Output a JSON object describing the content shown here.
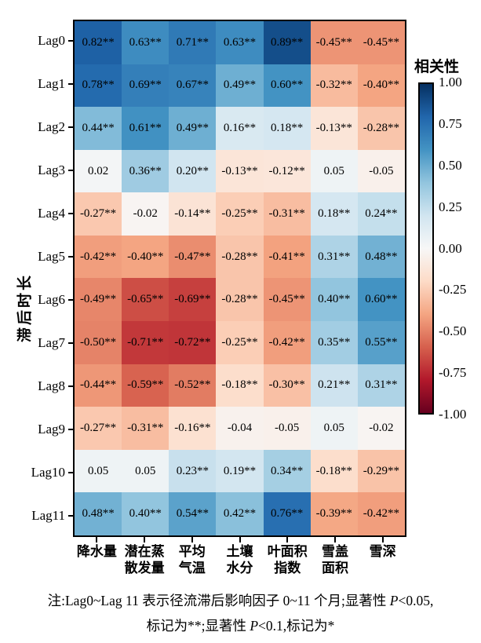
{
  "chart_data": {
    "type": "heatmap",
    "title": "",
    "ylabel": "滞后时长",
    "xlabel": "",
    "rows": [
      "Lag0",
      "Lag1",
      "Lag2",
      "Lag3",
      "Lag4",
      "Lag5",
      "Lag6",
      "Lag7",
      "Lag8",
      "Lag9",
      "Lag10",
      "Lag11"
    ],
    "columns": [
      [
        "降水量"
      ],
      [
        "潜在蒸",
        "散发量"
      ],
      [
        "平均",
        "气温"
      ],
      [
        "土壤",
        "水分"
      ],
      [
        "叶面积",
        "指数"
      ],
      [
        "雪盖",
        "面积"
      ],
      [
        "雪深"
      ]
    ],
    "values": [
      [
        0.82,
        0.63,
        0.71,
        0.63,
        0.89,
        -0.45,
        -0.45
      ],
      [
        0.78,
        0.69,
        0.67,
        0.49,
        0.6,
        -0.32,
        -0.4
      ],
      [
        0.44,
        0.61,
        0.49,
        0.16,
        0.18,
        -0.13,
        -0.28
      ],
      [
        0.02,
        0.36,
        0.2,
        -0.13,
        -0.12,
        0.05,
        -0.05
      ],
      [
        -0.27,
        -0.02,
        -0.14,
        -0.25,
        -0.31,
        0.18,
        0.24
      ],
      [
        -0.42,
        -0.4,
        -0.47,
        -0.28,
        -0.41,
        0.31,
        0.48
      ],
      [
        -0.49,
        -0.65,
        -0.69,
        -0.28,
        -0.45,
        0.4,
        0.6
      ],
      [
        -0.5,
        -0.71,
        -0.72,
        -0.25,
        -0.42,
        0.35,
        0.55
      ],
      [
        -0.44,
        -0.59,
        -0.52,
        -0.18,
        -0.3,
        0.21,
        0.31
      ],
      [
        -0.27,
        -0.31,
        -0.16,
        -0.04,
        -0.05,
        0.05,
        -0.02
      ],
      [
        0.05,
        0.05,
        0.23,
        0.19,
        0.34,
        -0.18,
        -0.29
      ],
      [
        0.48,
        0.4,
        0.54,
        0.42,
        0.76,
        -0.39,
        -0.42
      ]
    ],
    "labels": [
      [
        "0.82**",
        "0.63**",
        "0.71**",
        "0.63**",
        "0.89**",
        "-0.45**",
        "-0.45**"
      ],
      [
        "0.78**",
        "0.69**",
        "0.67**",
        "0.49**",
        "0.60**",
        "-0.32**",
        "-0.40**"
      ],
      [
        "0.44**",
        "0.61**",
        "0.49**",
        "0.16**",
        "0.18**",
        "-0.13**",
        "-0.28**"
      ],
      [
        "0.02",
        "0.36**",
        "0.20**",
        "-0.13**",
        "-0.12**",
        "0.05",
        "-0.05"
      ],
      [
        "-0.27**",
        "-0.02",
        "-0.14**",
        "-0.25**",
        "-0.31**",
        "0.18**",
        "0.24**"
      ],
      [
        "-0.42**",
        "-0.40**",
        "-0.47**",
        "-0.28**",
        "-0.41**",
        "0.31**",
        "0.48**"
      ],
      [
        "-0.49**",
        "-0.65**",
        "-0.69**",
        "-0.28**",
        "-0.45**",
        "0.40**",
        "0.60**"
      ],
      [
        "-0.50**",
        "-0.71**",
        "-0.72**",
        "-0.25**",
        "-0.42**",
        "0.35**",
        "0.55**"
      ],
      [
        "-0.44**",
        "-0.59**",
        "-0.52**",
        "-0.18**",
        "-0.30**",
        "0.21**",
        "0.31**"
      ],
      [
        "-0.27**",
        "-0.31**",
        "-0.16**",
        "-0.04",
        "-0.05",
        "0.05",
        "-0.02"
      ],
      [
        "0.05",
        "0.05",
        "0.23**",
        "0.19**",
        "0.34**",
        "-0.18**",
        "-0.29**"
      ],
      [
        "0.48**",
        "0.40**",
        "0.54**",
        "0.42**",
        "0.76**",
        "-0.39**",
        "-0.42**"
      ]
    ],
    "value_range": [
      -1,
      1
    ],
    "grid": false,
    "legend_position": "right",
    "colorbar": {
      "title": "相关性",
      "ticks": [
        "1.00",
        "0.75",
        "0.50",
        "0.25",
        "0.00",
        "-0.25",
        "-0.50",
        "-0.75",
        "-1.00"
      ],
      "min": -1,
      "max": 1
    },
    "colormap": [
      [
        -1.0,
        "#67001f"
      ],
      [
        -0.8,
        "#b2182b"
      ],
      [
        -0.6,
        "#d6604d"
      ],
      [
        -0.4,
        "#f4a582"
      ],
      [
        -0.2,
        "#fddbc7"
      ],
      [
        0.0,
        "#f7f7f7"
      ],
      [
        0.2,
        "#d1e5f0"
      ],
      [
        0.4,
        "#92c5de"
      ],
      [
        0.6,
        "#4393c3"
      ],
      [
        0.8,
        "#2166ac"
      ],
      [
        1.0,
        "#053061"
      ]
    ]
  },
  "note": {
    "lines": [
      [
        {
          "t": "注:Lag0~Lag 11 表示径流滞后影响因子 0~11 个月;显著性 "
        },
        {
          "t": "P",
          "i": true
        },
        {
          "t": "<0.05,"
        }
      ],
      [
        {
          "t": "标记为**;显著性 "
        },
        {
          "t": "P",
          "i": true
        },
        {
          "t": "<0.1,标记为*"
        }
      ]
    ]
  }
}
